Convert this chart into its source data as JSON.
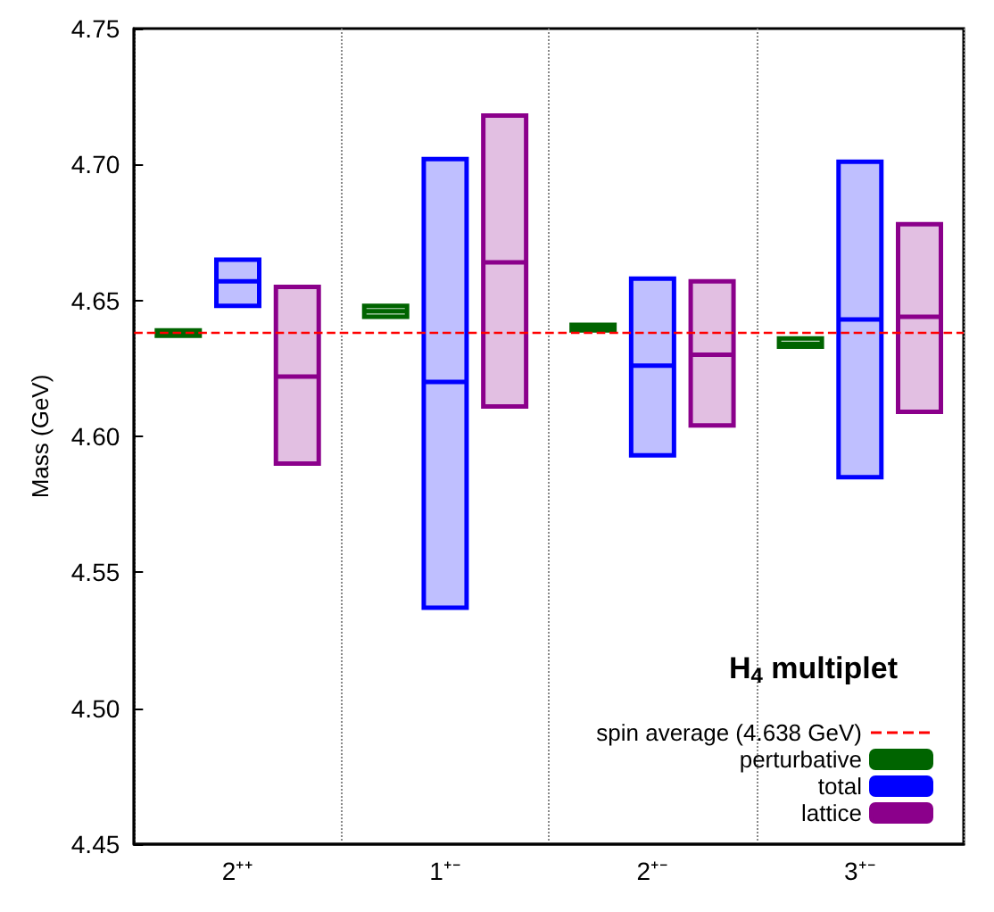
{
  "chart_data": {
    "type": "box",
    "ylabel": "Mass (GeV)",
    "legend_title": "H$_{4}$ multiplet",
    "categories": [
      "2⁺⁺",
      "1⁺⁻",
      "2⁺⁻",
      "3⁺⁻"
    ],
    "series": [
      {
        "name": "perturbative",
        "color": "#006400",
        "boxes": [
          {
            "low": 4.637,
            "q1": 4.637,
            "median": 4.638,
            "q3": 4.639,
            "high": 4.639
          },
          {
            "low": 4.644,
            "q1": 4.644,
            "median": 4.646,
            "q3": 4.648,
            "high": 4.648
          },
          {
            "low": 4.639,
            "q1": 4.639,
            "median": 4.64,
            "q3": 4.641,
            "high": 4.641
          },
          {
            "low": 4.633,
            "q1": 4.633,
            "median": 4.634,
            "q3": 4.636,
            "high": 4.636
          }
        ]
      },
      {
        "name": "total",
        "color": "#0000ff",
        "boxes": [
          {
            "low": 4.648,
            "q1": 4.648,
            "median": 4.657,
            "q3": 4.665,
            "high": 4.665
          },
          {
            "low": 4.537,
            "q1": 4.537,
            "median": 4.62,
            "q3": 4.702,
            "high": 4.702
          },
          {
            "low": 4.593,
            "q1": 4.593,
            "median": 4.626,
            "q3": 4.658,
            "high": 4.658
          },
          {
            "low": 4.585,
            "q1": 4.585,
            "median": 4.643,
            "q3": 4.701,
            "high": 4.701
          }
        ]
      },
      {
        "name": "lattice",
        "color": "#8b008b",
        "boxes": [
          {
            "low": 4.59,
            "q1": 4.59,
            "median": 4.622,
            "q3": 4.655,
            "high": 4.655
          },
          {
            "low": 4.611,
            "q1": 4.611,
            "median": 4.664,
            "q3": 4.718,
            "high": 4.718
          },
          {
            "low": 4.604,
            "q1": 4.604,
            "median": 4.63,
            "q3": 4.657,
            "high": 4.657
          },
          {
            "low": 4.609,
            "q1": 4.609,
            "median": 4.644,
            "q3": 4.678,
            "high": 4.678
          }
        ]
      }
    ],
    "ylim": [
      4.45,
      4.75
    ],
    "yticks": [
      {
        "value": 4.45,
        "label": "4.45"
      },
      {
        "value": 4.5,
        "label": "4.50"
      },
      {
        "value": 4.55,
        "label": "4.55"
      },
      {
        "value": 4.6,
        "label": "4.60"
      },
      {
        "value": 4.65,
        "label": "4.65"
      },
      {
        "value": 4.7,
        "label": "4.70"
      },
      {
        "value": 4.75,
        "label": "4.75"
      }
    ],
    "ref_lines": [
      {
        "axis": "y",
        "value": 4.638,
        "label": "spin average (4.638 GeV)",
        "color": "#ff0000",
        "line_style": "dashed"
      }
    ],
    "grid": "x",
    "legend": "bottom right"
  }
}
